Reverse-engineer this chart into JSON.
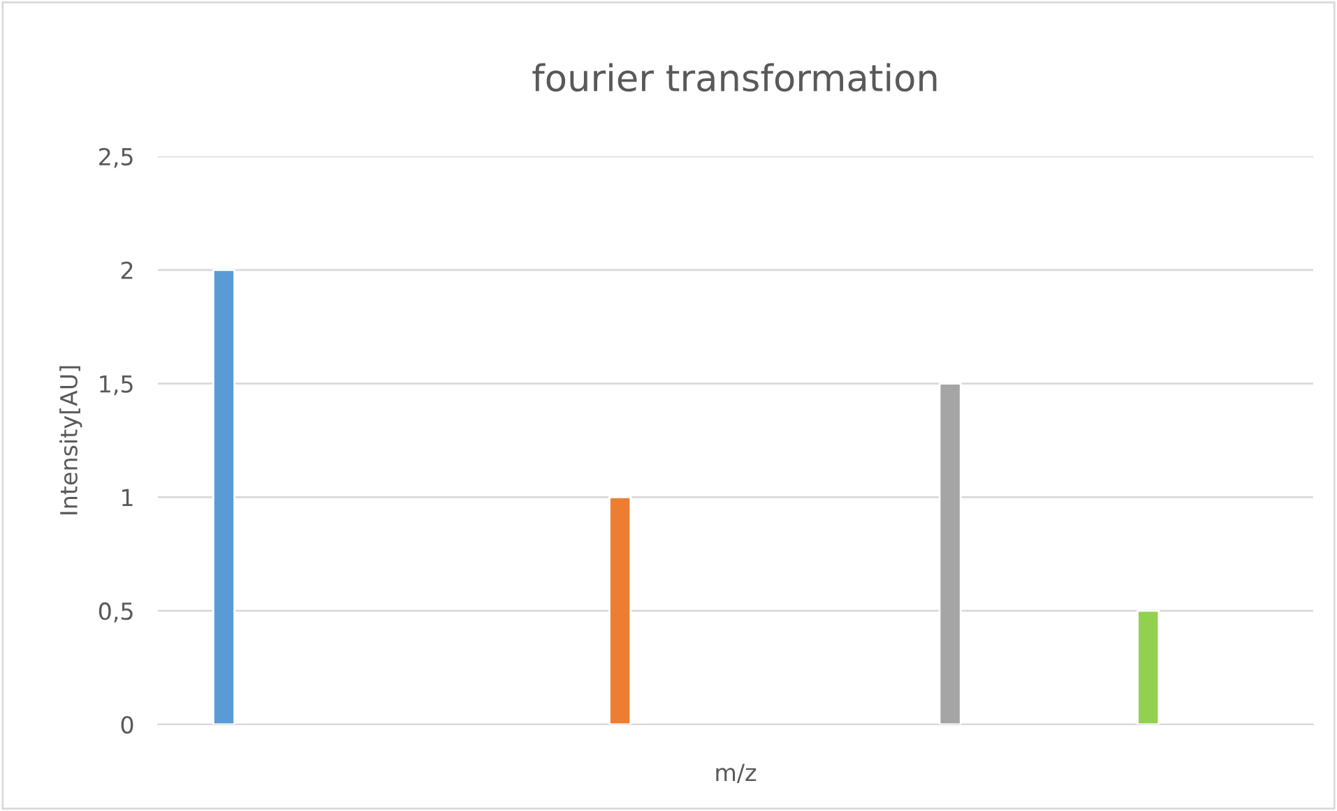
{
  "chart_data": {
    "type": "bar",
    "title": "fourier transformation",
    "xlabel": "m/z",
    "ylabel": "Intensity[AU]",
    "categories": [
      null,
      null,
      null,
      null,
      null,
      null,
      null,
      null,
      null,
      null,
      null,
      null,
      null,
      null,
      null,
      null,
      null
    ],
    "values": [
      2,
      null,
      null,
      null,
      null,
      null,
      1,
      null,
      null,
      null,
      null,
      1.5,
      null,
      null,
      0.5,
      null,
      null
    ],
    "colors": [
      "#5b9bd5",
      null,
      null,
      null,
      null,
      null,
      "#ed7d31",
      null,
      null,
      null,
      null,
      "#a5a5a5",
      null,
      null,
      "#92d050",
      null,
      null
    ],
    "ylim": [
      0,
      2.5
    ],
    "yticks": [
      0,
      {
        "value": 0.5,
        "label": "0,5"
      },
      1,
      {
        "value": 1.5,
        "label": "1,5"
      },
      2,
      {
        "value": 2.5,
        "label": "2,5"
      }
    ],
    "grid": "y"
  }
}
